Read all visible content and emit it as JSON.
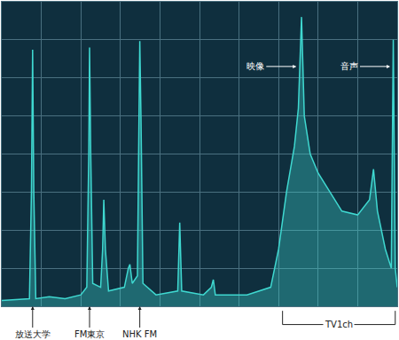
{
  "chart_data": {
    "type": "line",
    "x": [
      0,
      0.7,
      0.75,
      0.78,
      0.81,
      0.86,
      1.2,
      1.6,
      2.0,
      2.15,
      2.2,
      2.22,
      2.25,
      2.3,
      2.5,
      2.55,
      2.58,
      2.62,
      2.7,
      3.1,
      3.2,
      3.24,
      3.3,
      3.43,
      3.47,
      3.49,
      3.52,
      3.57,
      3.9,
      4.45,
      4.5,
      4.55,
      5.1,
      5.3,
      5.35,
      5.4,
      6.2,
      6.8,
      7.0,
      7.2,
      7.4,
      7.5,
      7.58,
      7.65,
      7.8,
      8.0,
      8.3,
      8.6,
      9.0,
      9.3,
      9.4,
      9.5,
      9.7,
      9.85,
      9.9,
      9.95,
      10
    ],
    "values": [
      0.15,
      0.2,
      3,
      6.74,
      3,
      0.2,
      0.25,
      0.2,
      0.3,
      0.5,
      4,
      6.8,
      4,
      0.6,
      0.5,
      1.5,
      2.8,
      1.5,
      0.4,
      0.5,
      1.0,
      1.1,
      0.6,
      0.8,
      5,
      6.97,
      5,
      0.6,
      0.3,
      0.4,
      2.2,
      0.4,
      0.3,
      0.5,
      0.7,
      0.3,
      0.3,
      0.5,
      1.5,
      3.0,
      4.2,
      5.2,
      7.6,
      5.0,
      4.0,
      3.5,
      3.0,
      2.5,
      2.4,
      2.8,
      3.6,
      2.5,
      1.5,
      1.0,
      7.0,
      1.0,
      0.5
    ],
    "color": "#3fd8d0",
    "xlim": [
      0,
      10
    ],
    "ylim": [
      0,
      8
    ],
    "xticks": [
      0,
      1,
      2,
      3,
      4,
      5,
      6,
      7,
      8,
      9,
      10
    ],
    "yticks": [
      0,
      1,
      2,
      3,
      4,
      5,
      6,
      7,
      8
    ],
    "grid": true,
    "tick_labels": false,
    "annotations": [
      {
        "text": "放送大学",
        "x": 0.78
      },
      {
        "text": "FM東京",
        "x": 2.22
      },
      {
        "text": "NHK FM",
        "x": 3.49
      },
      {
        "text": "映像",
        "x": 7.45,
        "y": 6.3
      },
      {
        "text": "音声",
        "x": 9.82,
        "y": 6.3
      },
      {
        "text": "TV1ch",
        "x": [
          7.1,
          9.95
        ]
      }
    ]
  }
}
